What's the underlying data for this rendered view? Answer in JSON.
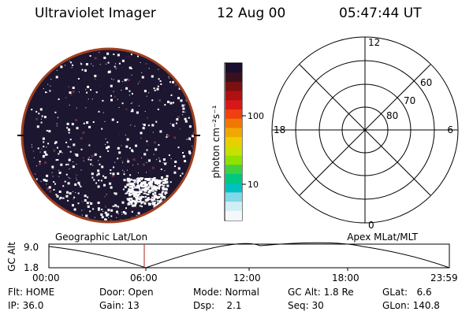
{
  "header": {
    "instrument": "Ultraviolet Imager",
    "date": "12 Aug 00",
    "time": "05:47:44 UT"
  },
  "colorbar": {
    "unit_label": "photon cm⁻²s⁻¹",
    "ticks": [
      "100",
      "10"
    ],
    "ticks_values": [
      100,
      10
    ],
    "colors_top_to_bottom": [
      "#1a0e2e",
      "#3a1020",
      "#7a1010",
      "#b01010",
      "#d81818",
      "#f04010",
      "#f07800",
      "#f0a800",
      "#e8d000",
      "#c8e000",
      "#90e000",
      "#40d040",
      "#00c880",
      "#00c0c0",
      "#80d8e8",
      "#d0eef4",
      "#f4f8fa"
    ]
  },
  "image_panel": {
    "background_color": "#1c1630",
    "border_color": "#a04020",
    "speckle_color": "#ffffff"
  },
  "polar_grid": {
    "mlt_labels": {
      "top": "12",
      "right": "6",
      "bottom": "0",
      "left": "18"
    },
    "lat_labels": [
      "60",
      "70",
      "80"
    ]
  },
  "orbit_plot": {
    "left_title": "Geographic Lat/Lon",
    "right_title": "Apex MLat/MLT",
    "ylabel": "GC Alt",
    "ytick_top": "9.0",
    "ytick_bottom": "1.8",
    "xticks": [
      "00:00",
      "06:00",
      "12:00",
      "18:00",
      "23:59"
    ],
    "marker_color": "#b02020"
  },
  "footer": {
    "row1": {
      "flt": "Flt: HOME",
      "door": "Door: Open",
      "mode": "Mode: Normal",
      "gc_alt": "GC Alt: 1.8 Re",
      "glat": "GLat:   6.6"
    },
    "row2": {
      "ip": "IP: 36.0",
      "gain": "Gain: 13",
      "dsp": "Dsp:    2.1",
      "seq": "Seq: 30",
      "glon": "GLon: 140.8"
    }
  }
}
